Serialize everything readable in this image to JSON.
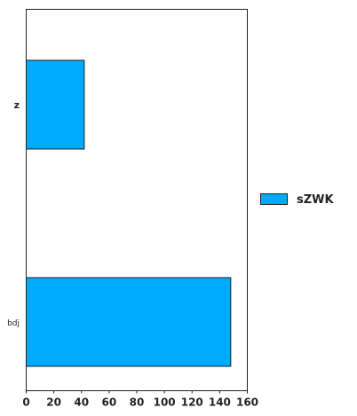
{
  "chart_data": {
    "type": "bar",
    "orientation": "horizontal",
    "categories": [
      "z",
      "bdj"
    ],
    "series": [
      {
        "name": "sZWK",
        "values": [
          42,
          148
        ]
      }
    ],
    "xlim": [
      0,
      160
    ],
    "xticks": [
      0,
      20,
      40,
      60,
      80,
      100,
      120,
      140,
      160
    ],
    "title": "",
    "xlabel": "",
    "ylabel": "",
    "grid": false,
    "legend_position": "right",
    "colors": {
      "bar_fill": "#00aaff",
      "bar_stroke": "#222222",
      "axis": "#222222"
    }
  }
}
